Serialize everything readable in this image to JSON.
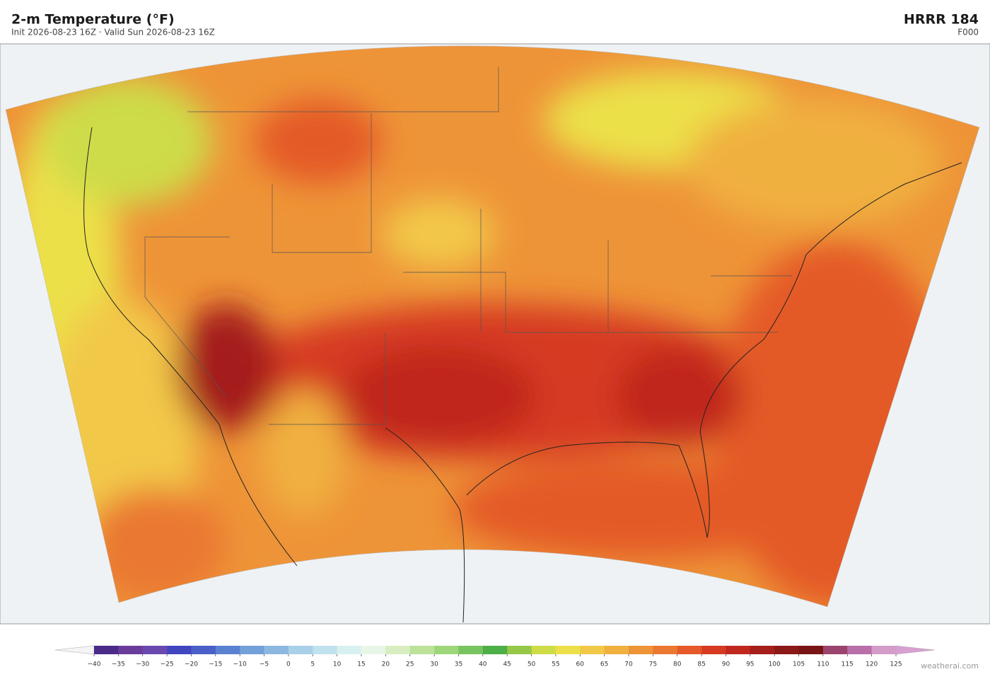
{
  "header": {
    "title": "2-m Temperature  (°F)",
    "subtitle": "Init 2026-08-23 16Z  ·  Valid Sun 2026-08-23 16Z",
    "model": "HRRR  184",
    "forecast_hour": "F000"
  },
  "colorbar": {
    "limits": [
      -40,
      125
    ],
    "ticks": [
      {
        "value": -40,
        "label": "−40"
      },
      {
        "value": -35,
        "label": "−35"
      },
      {
        "value": -30,
        "label": "−30"
      },
      {
        "value": -25,
        "label": "−25"
      },
      {
        "value": -20,
        "label": "−20"
      },
      {
        "value": -15,
        "label": "−15"
      },
      {
        "value": -10,
        "label": "−10"
      },
      {
        "value": -5,
        "label": "−5"
      },
      0,
      5,
      10,
      15,
      20,
      25,
      30,
      35,
      40,
      45,
      50,
      55,
      60,
      65,
      70,
      75,
      80,
      85,
      90,
      95,
      100,
      105,
      110,
      115,
      120,
      125
    ],
    "colors": [
      "#4b2a8a",
      "#6a3d9a",
      "#6b48b0",
      "#4145c0",
      "#4a5fc8",
      "#5a82d0",
      "#74a0d8",
      "#8cb8e0",
      "#a8d0e8",
      "#c0e2ee",
      "#d8f0f0",
      "#e8f6e8",
      "#d8eec0",
      "#bce29a",
      "#9ed67a",
      "#78c460",
      "#4caf48",
      "#96c848",
      "#cedc48",
      "#ece048",
      "#f2c848",
      "#f0b040",
      "#ee9438",
      "#ea7830",
      "#e45a28",
      "#d63a22",
      "#c0281e",
      "#a41e1a",
      "#8c1818",
      "#781414",
      "#9c4470",
      "#b86ea8",
      "#d49cc8"
    ],
    "under_color": "#f4f4f4",
    "over_color": "#d8a0d0"
  },
  "footer": {
    "credit": "weatherai.com"
  }
}
